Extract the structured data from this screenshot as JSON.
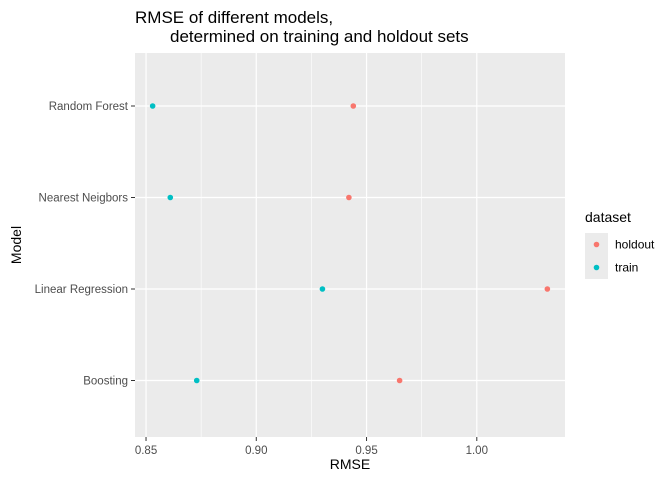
{
  "chart_data": {
    "type": "scatter",
    "title_line1": "RMSE of different models,",
    "title_line2": "determined on training and holdout sets",
    "xlabel": "RMSE",
    "ylabel": "Model",
    "categories": [
      "Random Forest",
      "Nearest Neigbors",
      "Linear Regression",
      "Boosting"
    ],
    "xlim": [
      0.845,
      1.04
    ],
    "xticks": [
      0.85,
      0.9,
      0.95,
      1.0
    ],
    "xtick_labels": [
      "0.85",
      "0.90",
      "0.95",
      "1.00"
    ],
    "grid": true,
    "legend": {
      "title": "dataset",
      "position": "right"
    },
    "series": [
      {
        "name": "holdout",
        "color": "#F8766D",
        "values": [
          0.944,
          0.942,
          1.032,
          0.965
        ]
      },
      {
        "name": "train",
        "color": "#00BFC4",
        "values": [
          0.853,
          0.861,
          0.93,
          0.873
        ]
      }
    ]
  }
}
